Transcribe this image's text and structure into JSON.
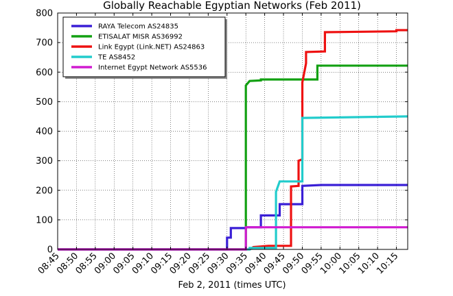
{
  "chart_data": {
    "type": "line",
    "title": "Globally Reachable Egyptian Networks (Feb 2011)",
    "xlabel": "Feb 2, 2011 (times UTC)",
    "ylabel": "",
    "ylim": [
      0,
      800
    ],
    "yticks": [
      0,
      100,
      200,
      300,
      400,
      500,
      600,
      700,
      800
    ],
    "xlim": [
      "08:45",
      "10:18"
    ],
    "xticks": [
      "08:45",
      "08:50",
      "08:55",
      "09:00",
      "09:05",
      "09:10",
      "09:15",
      "09:20",
      "09:25",
      "09:30",
      "09:35",
      "09:40",
      "09:45",
      "09:50",
      "09:55",
      "10:00",
      "10:05",
      "10:10",
      "10:15"
    ],
    "grid": true,
    "legend_position": "top-left",
    "series": [
      {
        "name": "RAYA Telecom AS24835",
        "color": "#3a1fd6",
        "points": [
          [
            "08:45",
            0
          ],
          [
            "09:30",
            0
          ],
          [
            "09:30",
            40
          ],
          [
            "09:31",
            40
          ],
          [
            "09:31",
            72
          ],
          [
            "09:35",
            72
          ],
          [
            "09:35",
            75
          ],
          [
            "09:39",
            75
          ],
          [
            "09:39",
            115
          ],
          [
            "09:44",
            115
          ],
          [
            "09:44",
            153
          ],
          [
            "09:50",
            153
          ],
          [
            "09:50",
            215
          ],
          [
            "09:55",
            218
          ],
          [
            "10:18",
            218
          ]
        ]
      },
      {
        "name": "ETISALAT MISR AS36992",
        "color": "#12a012",
        "points": [
          [
            "08:45",
            0
          ],
          [
            "09:35",
            0
          ],
          [
            "09:35",
            555
          ],
          [
            "09:36",
            570
          ],
          [
            "09:39",
            572
          ],
          [
            "09:39",
            575
          ],
          [
            "09:54",
            575
          ],
          [
            "09:54",
            622
          ],
          [
            "10:18",
            622
          ]
        ]
      },
      {
        "name": "Link Egypt (Link.NET) AS24863",
        "color": "#ee1111",
        "points": [
          [
            "08:45",
            0
          ],
          [
            "09:36",
            0
          ],
          [
            "09:37",
            8
          ],
          [
            "09:41",
            12
          ],
          [
            "09:44",
            12
          ],
          [
            "09:47",
            12
          ],
          [
            "09:47",
            213
          ],
          [
            "09:49",
            215
          ],
          [
            "09:49",
            300
          ],
          [
            "09:50",
            305
          ],
          [
            "09:50",
            565
          ],
          [
            "09:51",
            630
          ],
          [
            "09:51",
            668
          ],
          [
            "09:56",
            670
          ],
          [
            "09:56",
            735
          ],
          [
            "10:15",
            738
          ],
          [
            "10:15",
            742
          ],
          [
            "10:18",
            742
          ]
        ]
      },
      {
        "name": "TE AS8452",
        "color": "#22cccc",
        "points": [
          [
            "08:45",
            0
          ],
          [
            "09:36",
            0
          ],
          [
            "09:36",
            5
          ],
          [
            "09:43",
            5
          ],
          [
            "09:43",
            195
          ],
          [
            "09:44",
            230
          ],
          [
            "09:50",
            230
          ],
          [
            "09:50",
            445
          ],
          [
            "10:18",
            450
          ]
        ]
      },
      {
        "name": "Internet Egypt Network AS5536",
        "color": "#d01bd0",
        "points": [
          [
            "08:45",
            0
          ],
          [
            "09:35",
            0
          ],
          [
            "09:35",
            75
          ],
          [
            "10:18",
            75
          ]
        ]
      }
    ]
  }
}
